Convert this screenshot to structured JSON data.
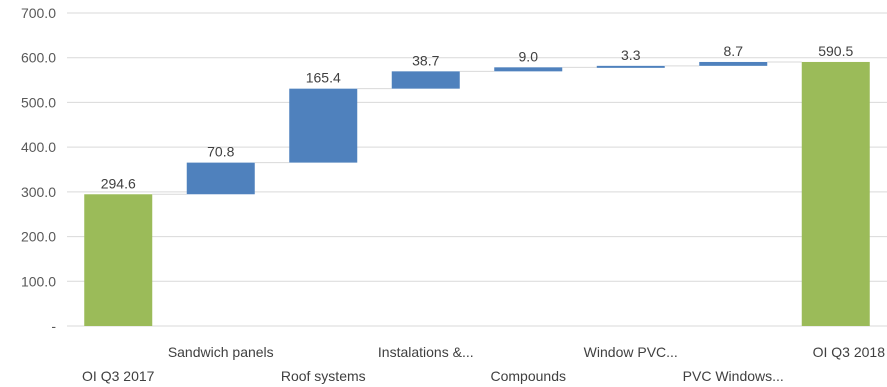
{
  "chart_data": {
    "type": "bar",
    "subtype": "waterfall",
    "title": "",
    "xlabel": "",
    "ylabel": "",
    "ylim": [
      0,
      700
    ],
    "yticks": [
      0,
      100,
      200,
      300,
      400,
      500,
      600,
      700
    ],
    "ytick_labels": [
      "-",
      "100.0",
      "200.0",
      "300.0",
      "400.0",
      "500.0",
      "600.0",
      "700.0"
    ],
    "grid": true,
    "legend": "none",
    "categories": [
      "OI Q3 2017",
      "Sandwich panels",
      "Roof systems",
      "Instalations &...",
      "Compounds",
      "Window PVC...",
      "PVC Windows...",
      "OI Q3 2018"
    ],
    "values": [
      294.6,
      70.8,
      165.4,
      38.7,
      9.0,
      3.3,
      8.7,
      590.5
    ],
    "kinds": [
      "total",
      "increase",
      "increase",
      "increase",
      "increase",
      "increase",
      "increase",
      "total"
    ],
    "value_labels": [
      "294.6",
      "70.8",
      "165.4",
      "38.7",
      "9.0",
      "3.3",
      "8.7",
      "590.5"
    ],
    "colors": {
      "total": "#9BBB59",
      "increase": "#4F81BD",
      "connector": "#D9D9D9",
      "gridline": "#D9D9D9",
      "axis_text": "#595959"
    }
  }
}
